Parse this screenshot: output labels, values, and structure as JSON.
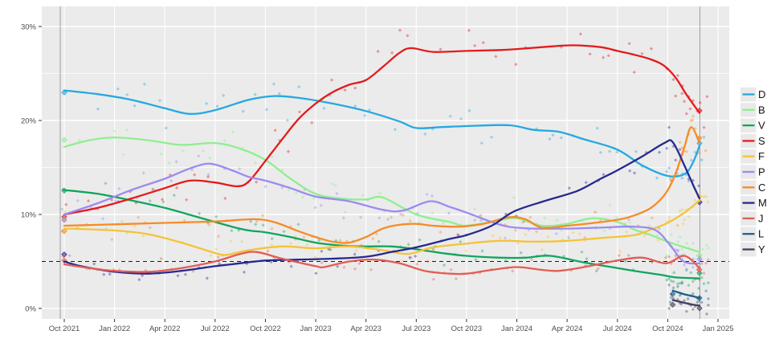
{
  "chart_data": {
    "type": "line",
    "subtype": "smoothed-poll-average-with-scatter",
    "title": "",
    "x_axis": {
      "tick_labels": [
        "Oct 2021",
        "Jan 2022",
        "Apr 2022",
        "Jul 2022",
        "Oct 2022",
        "Jan 2023",
        "Apr 2023",
        "Jul 2023",
        "Oct 2023",
        "Jan 2024",
        "Apr 2024",
        "Jul 2024",
        "Oct 2024",
        "Jan 2025"
      ],
      "tick_months": [
        0,
        3,
        6,
        9,
        12,
        15,
        18,
        21,
        24,
        27,
        30,
        33,
        36,
        39
      ],
      "range_months": [
        -1.1,
        39.6
      ]
    },
    "y_axis": {
      "tick_labels": [
        "0%",
        "10%",
        "20%",
        "30%"
      ],
      "tick_values": [
        0,
        10,
        20,
        30
      ],
      "minor_tick_values": [
        5,
        15,
        25
      ],
      "range_pct": [
        -1.1,
        32.2
      ]
    },
    "reference_lines": {
      "dashed_threshold_pct": 5,
      "vertical_marker_months": [
        -0.24,
        37.92
      ]
    },
    "panel": {
      "background": "#ebebeb",
      "gridline_color": "#ffffff",
      "axis_text_color": "#4d4d4d"
    },
    "legend": {
      "position": "right",
      "entries": [
        "D",
        "B",
        "V",
        "S",
        "F",
        "P",
        "C",
        "M",
        "J",
        "L",
        "Y"
      ],
      "key_background": "#e9e9e9"
    },
    "series": [
      {
        "name": "D",
        "color": "#25a8e0",
        "points": [
          [
            0,
            23.2
          ],
          [
            2,
            22.8
          ],
          [
            4,
            22.2
          ],
          [
            6,
            21.3
          ],
          [
            7.5,
            20.7
          ],
          [
            9,
            21.1
          ],
          [
            11,
            22.2
          ],
          [
            12.5,
            22.6
          ],
          [
            14,
            22.4
          ],
          [
            16,
            21.8
          ],
          [
            18,
            21.0
          ],
          [
            20,
            19.9
          ],
          [
            21,
            19.2
          ],
          [
            22.5,
            19.3
          ],
          [
            24,
            19.4
          ],
          [
            26.5,
            19.5
          ],
          [
            28,
            19.0
          ],
          [
            29.5,
            18.8
          ],
          [
            31,
            18.0
          ],
          [
            33,
            16.9
          ],
          [
            34.5,
            15.2
          ],
          [
            36,
            14.1
          ],
          [
            37,
            14.3
          ],
          [
            37.5,
            15.5
          ],
          [
            37.9,
            17.3
          ]
        ]
      },
      {
        "name": "B",
        "color": "#90ee90",
        "points": [
          [
            0,
            17.2
          ],
          [
            1.5,
            17.9
          ],
          [
            3,
            18.2
          ],
          [
            5,
            17.9
          ],
          [
            7,
            17.4
          ],
          [
            9,
            17.6
          ],
          [
            10.5,
            17.0
          ],
          [
            12,
            15.8
          ],
          [
            13.5,
            13.8
          ],
          [
            15,
            12.2
          ],
          [
            16.5,
            11.7
          ],
          [
            18,
            11.6
          ],
          [
            19,
            11.8
          ],
          [
            21,
            10.0
          ],
          [
            23,
            9.2
          ],
          [
            24,
            8.8
          ],
          [
            26,
            9.4
          ],
          [
            27,
            9.6
          ],
          [
            28.5,
            8.8
          ],
          [
            30,
            9.0
          ],
          [
            31.5,
            9.6
          ],
          [
            33,
            9.2
          ],
          [
            34,
            8.4
          ],
          [
            35,
            7.8
          ],
          [
            36,
            7.1
          ],
          [
            37,
            6.5
          ],
          [
            37.9,
            6.0
          ]
        ]
      },
      {
        "name": "V",
        "color": "#12a45e",
        "points": [
          [
            0,
            12.6
          ],
          [
            2,
            12.2
          ],
          [
            4,
            11.5
          ],
          [
            6,
            10.7
          ],
          [
            8,
            9.7
          ],
          [
            10,
            8.7
          ],
          [
            11,
            8.3
          ],
          [
            12,
            8.1
          ],
          [
            13.5,
            7.6
          ],
          [
            15,
            7.0
          ],
          [
            16.5,
            6.7
          ],
          [
            18,
            6.6
          ],
          [
            19.5,
            6.6
          ],
          [
            21,
            6.3
          ],
          [
            22.5,
            5.9
          ],
          [
            24,
            5.6
          ],
          [
            26,
            5.4
          ],
          [
            27.5,
            5.4
          ],
          [
            29,
            5.6
          ],
          [
            31,
            4.9
          ],
          [
            33,
            4.3
          ],
          [
            34,
            4.0
          ],
          [
            35.5,
            3.6
          ],
          [
            36.5,
            3.3
          ],
          [
            37.9,
            3.2
          ]
        ]
      },
      {
        "name": "S",
        "color": "#e41a1c",
        "points": [
          [
            0,
            10.0
          ],
          [
            2,
            10.7
          ],
          [
            4,
            11.7
          ],
          [
            6,
            12.8
          ],
          [
            7.5,
            13.6
          ],
          [
            9,
            13.4
          ],
          [
            10.3,
            13.0
          ],
          [
            11,
            13.5
          ],
          [
            12,
            15.7
          ],
          [
            13,
            18.0
          ],
          [
            14,
            20.2
          ],
          [
            15,
            21.8
          ],
          [
            16,
            23.0
          ],
          [
            17,
            23.8
          ],
          [
            18,
            24.3
          ],
          [
            19,
            25.7
          ],
          [
            20,
            27.2
          ],
          [
            20.7,
            27.7
          ],
          [
            22,
            27.3
          ],
          [
            24,
            27.4
          ],
          [
            26,
            27.5
          ],
          [
            27,
            27.6
          ],
          [
            28.5,
            27.8
          ],
          [
            30.3,
            28.0
          ],
          [
            32,
            27.8
          ],
          [
            33,
            27.4
          ],
          [
            34,
            27.0
          ],
          [
            35,
            26.5
          ],
          [
            35.8,
            25.8
          ],
          [
            36.5,
            24.5
          ],
          [
            37.1,
            22.8
          ],
          [
            37.9,
            20.8
          ]
        ]
      },
      {
        "name": "F",
        "color": "#f5c337",
        "points": [
          [
            0,
            8.5
          ],
          [
            3,
            8.3
          ],
          [
            5,
            7.9
          ],
          [
            7,
            7.0
          ],
          [
            9,
            5.9
          ],
          [
            9.7,
            5.7
          ],
          [
            11,
            6.2
          ],
          [
            13,
            6.6
          ],
          [
            15,
            6.4
          ],
          [
            17,
            6.6
          ],
          [
            19,
            6.2
          ],
          [
            20.5,
            5.8
          ],
          [
            22,
            6.5
          ],
          [
            24,
            6.9
          ],
          [
            26,
            7.2
          ],
          [
            28,
            7.1
          ],
          [
            30,
            7.2
          ],
          [
            32,
            7.5
          ],
          [
            34,
            7.8
          ],
          [
            35,
            8.4
          ],
          [
            36,
            9.1
          ],
          [
            37,
            10.2
          ],
          [
            37.9,
            11.5
          ]
        ]
      },
      {
        "name": "P",
        "color": "#9c8bf0",
        "points": [
          [
            0,
            10.0
          ],
          [
            2,
            11.2
          ],
          [
            4,
            12.6
          ],
          [
            6,
            13.8
          ],
          [
            7.5,
            14.9
          ],
          [
            8.7,
            15.4
          ],
          [
            10,
            14.7
          ],
          [
            11,
            14.0
          ],
          [
            12,
            13.6
          ],
          [
            13.5,
            12.8
          ],
          [
            15,
            11.9
          ],
          [
            17,
            11.4
          ],
          [
            19,
            10.5
          ],
          [
            20.2,
            10.4
          ],
          [
            21.8,
            11.4
          ],
          [
            23,
            10.8
          ],
          [
            24,
            10.2
          ],
          [
            25.5,
            9.2
          ],
          [
            26.5,
            8.7
          ],
          [
            28,
            8.5
          ],
          [
            30,
            8.5
          ],
          [
            32,
            8.6
          ],
          [
            34,
            8.7
          ],
          [
            35.3,
            8.3
          ],
          [
            36.2,
            6.6
          ],
          [
            36.8,
            5.2
          ],
          [
            37.3,
            4.8
          ],
          [
            37.9,
            4.8
          ]
        ]
      },
      {
        "name": "C",
        "color": "#f68b27",
        "points": [
          [
            0,
            8.8
          ],
          [
            2,
            8.9
          ],
          [
            4,
            9.0
          ],
          [
            6,
            9.1
          ],
          [
            8,
            9.2
          ],
          [
            9.5,
            9.3
          ],
          [
            11.3,
            9.5
          ],
          [
            12.5,
            9.2
          ],
          [
            14,
            8.2
          ],
          [
            15,
            7.6
          ],
          [
            16,
            7.1
          ],
          [
            17,
            7.0
          ],
          [
            18,
            7.6
          ],
          [
            19,
            8.5
          ],
          [
            20,
            8.9
          ],
          [
            21,
            9.0
          ],
          [
            22,
            8.8
          ],
          [
            23.5,
            8.7
          ],
          [
            25,
            9.0
          ],
          [
            26.5,
            9.7
          ],
          [
            27.5,
            9.5
          ],
          [
            28.5,
            8.6
          ],
          [
            30,
            8.8
          ],
          [
            31.6,
            9.1
          ],
          [
            33.2,
            9.5
          ],
          [
            34,
            9.9
          ],
          [
            35,
            10.7
          ],
          [
            35.9,
            12.3
          ],
          [
            36.5,
            14.5
          ],
          [
            37,
            17.2
          ],
          [
            37.4,
            19.3
          ],
          [
            37.9,
            17.6
          ]
        ]
      },
      {
        "name": "M",
        "color": "#27298f",
        "points": [
          [
            0,
            5.0
          ],
          [
            1,
            4.5
          ],
          [
            3,
            3.9
          ],
          [
            5,
            3.7
          ],
          [
            7,
            4.0
          ],
          [
            9,
            4.5
          ],
          [
            10,
            4.7
          ],
          [
            12,
            5.1
          ],
          [
            14,
            5.2
          ],
          [
            16,
            5.3
          ],
          [
            18,
            5.5
          ],
          [
            19.5,
            6.0
          ],
          [
            21,
            6.5
          ],
          [
            23,
            7.4
          ],
          [
            24,
            7.8
          ],
          [
            25.5,
            8.8
          ],
          [
            26.8,
            10.3
          ],
          [
            28.6,
            11.4
          ],
          [
            30.6,
            12.5
          ],
          [
            32,
            13.8
          ],
          [
            33,
            14.7
          ],
          [
            34.5,
            16.2
          ],
          [
            35.8,
            17.6
          ],
          [
            36.3,
            17.7
          ],
          [
            37,
            15.2
          ],
          [
            37.5,
            13.2
          ],
          [
            37.9,
            11.7
          ]
        ]
      },
      {
        "name": "J",
        "color": "#e25d53",
        "points": [
          [
            0,
            4.7
          ],
          [
            1.5,
            4.3
          ],
          [
            3,
            4.0
          ],
          [
            5,
            3.9
          ],
          [
            7,
            4.3
          ],
          [
            9,
            5.0
          ],
          [
            10.5,
            5.8
          ],
          [
            11.5,
            6.0
          ],
          [
            13,
            5.3
          ],
          [
            15,
            4.5
          ],
          [
            15.5,
            4.4
          ],
          [
            17,
            5.0
          ],
          [
            18.5,
            5.2
          ],
          [
            20,
            4.8
          ],
          [
            21.5,
            4.0
          ],
          [
            23,
            3.7
          ],
          [
            24,
            3.7
          ],
          [
            25.5,
            4.1
          ],
          [
            27,
            4.4
          ],
          [
            28.5,
            4.1
          ],
          [
            29.5,
            4.0
          ],
          [
            31,
            4.4
          ],
          [
            33,
            5.1
          ],
          [
            34.5,
            5.4
          ],
          [
            35.9,
            4.8
          ],
          [
            37,
            5.6
          ],
          [
            37.9,
            4.3
          ]
        ]
      },
      {
        "name": "L",
        "color": "#1f5f8a",
        "points": [
          [
            36.3,
            1.9
          ],
          [
            37,
            1.5
          ],
          [
            37.5,
            1.3
          ],
          [
            37.9,
            1.1
          ]
        ]
      },
      {
        "name": "Y",
        "color": "#413d5e",
        "points": [
          [
            36.3,
            0.9
          ],
          [
            37,
            0.6
          ],
          [
            37.5,
            0.4
          ],
          [
            37.9,
            0.3
          ]
        ]
      }
    ]
  }
}
